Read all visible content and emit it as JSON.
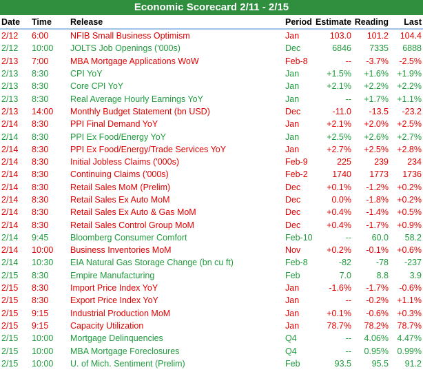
{
  "title": "Economic Scorecard 2/11 - 2/15",
  "table": {
    "header": [
      "Date",
      "Time",
      "Release",
      "Period",
      "Estimate",
      "Reading",
      "Last"
    ],
    "rows": [
      {
        "color": "#e00000",
        "cells": [
          "2/12",
          "6:00",
          "NFIB Small Business Optimism",
          "Jan",
          "103.0",
          "101.2",
          "104.4"
        ]
      },
      {
        "color": "#1e9a3c",
        "cells": [
          "2/12",
          "10:00",
          "JOLTS Job Openings ('000s)",
          "Dec",
          "6846",
          "7335",
          "6888"
        ]
      },
      {
        "color": "#e00000",
        "cells": [
          "2/13",
          "7:00",
          "MBA Mortgage Applications WoW",
          "Feb-8",
          "--",
          "-3.7%",
          "-2.5%"
        ]
      },
      {
        "color": "#1e9a3c",
        "cells": [
          "2/13",
          "8:30",
          "CPI YoY",
          "Jan",
          "+1.5%",
          "+1.6%",
          "+1.9%"
        ]
      },
      {
        "color": "#1e9a3c",
        "cells": [
          "2/13",
          "8:30",
          "Core CPI YoY",
          "Jan",
          "+2.1%",
          "+2.2%",
          "+2.2%"
        ]
      },
      {
        "color": "#1e9a3c",
        "cells": [
          "2/13",
          "8:30",
          "Real Average Hourly Earnings YoY",
          "Jan",
          "--",
          "+1.7%",
          "+1.1%"
        ]
      },
      {
        "color": "#e00000",
        "cells": [
          "2/13",
          "14:00",
          "Monthly Budget Statement (bn USD)",
          "Dec",
          "-11.0",
          "-13.5",
          "-23.2"
        ]
      },
      {
        "color": "#e00000",
        "cells": [
          "2/14",
          "8:30",
          "PPI Final Demand YoY",
          "Jan",
          "+2.1%",
          "+2.0%",
          "+2.5%"
        ]
      },
      {
        "color": "#1e9a3c",
        "cells": [
          "2/14",
          "8:30",
          "PPI Ex Food/Energy YoY",
          "Jan",
          "+2.5%",
          "+2.6%",
          "+2.7%"
        ]
      },
      {
        "color": "#e00000",
        "cells": [
          "2/14",
          "8:30",
          "PPI Ex Food/Energy/Trade Services YoY",
          "Jan",
          "+2.7%",
          "+2.5%",
          "+2.8%"
        ]
      },
      {
        "color": "#e00000",
        "cells": [
          "2/14",
          "8:30",
          "Initial Jobless Claims ('000s)",
          "Feb-9",
          "225",
          "239",
          "234"
        ]
      },
      {
        "color": "#e00000",
        "cells": [
          "2/14",
          "8:30",
          "Continuing Claims ('000s)",
          "Feb-2",
          "1740",
          "1773",
          "1736"
        ]
      },
      {
        "color": "#e00000",
        "cells": [
          "2/14",
          "8:30",
          "Retail Sales MoM (Prelim)",
          "Dec",
          "+0.1%",
          "-1.2%",
          "+0.2%"
        ]
      },
      {
        "color": "#e00000",
        "cells": [
          "2/14",
          "8:30",
          "Retail Sales Ex Auto MoM",
          "Dec",
          "0.0%",
          "-1.8%",
          "+0.2%"
        ]
      },
      {
        "color": "#e00000",
        "cells": [
          "2/14",
          "8:30",
          "Retail Sales Ex Auto & Gas MoM",
          "Dec",
          "+0.4%",
          "-1.4%",
          "+0.5%"
        ]
      },
      {
        "color": "#e00000",
        "cells": [
          "2/14",
          "8:30",
          "Retail Sales Control Group MoM",
          "Dec",
          "+0.4%",
          "-1.7%",
          "+0.9%"
        ]
      },
      {
        "color": "#1e9a3c",
        "cells": [
          "2/14",
          "9:45",
          "Bloomberg Consumer Comfort",
          "Feb-10",
          "--",
          "60.0",
          "58.2"
        ]
      },
      {
        "color": "#e00000",
        "cells": [
          "2/14",
          "10:00",
          "Business Inventories MoM",
          "Nov",
          "+0.2%",
          "-0.1%",
          "+0.6%"
        ]
      },
      {
        "color": "#1e9a3c",
        "cells": [
          "2/14",
          "10:30",
          "EIA Natural Gas Storage Change (bn cu ft)",
          "Feb-8",
          "-82",
          "-78",
          "-237"
        ]
      },
      {
        "color": "#1e9a3c",
        "cells": [
          "2/15",
          "8:30",
          "Empire Manufacturing",
          "Feb",
          "7.0",
          "8.8",
          "3.9"
        ]
      },
      {
        "color": "#e00000",
        "cells": [
          "2/15",
          "8:30",
          "Import Price Index YoY",
          "Jan",
          "-1.6%",
          "-1.7%",
          "-0.6%"
        ]
      },
      {
        "color": "#e00000",
        "cells": [
          "2/15",
          "8:30",
          "Export Price Index YoY",
          "Jan",
          "--",
          "-0.2%",
          "+1.1%"
        ]
      },
      {
        "color": "#e00000",
        "cells": [
          "2/15",
          "9:15",
          "Industrial Production MoM",
          "Jan",
          "+0.1%",
          "-0.6%",
          "+0.3%"
        ]
      },
      {
        "color": "#e00000",
        "cells": [
          "2/15",
          "9:15",
          "Capacity Utilization",
          "Jan",
          "78.7%",
          "78.2%",
          "78.7%"
        ]
      },
      {
        "color": "#1e9a3c",
        "cells": [
          "2/15",
          "10:00",
          "Mortgage Delinquencies",
          "Q4",
          "--",
          "4.06%",
          "4.47%"
        ]
      },
      {
        "color": "#1e9a3c",
        "cells": [
          "2/15",
          "10:00",
          "MBA Mortgage Foreclosures",
          "Q4",
          "--",
          "0.95%",
          "0.99%"
        ]
      },
      {
        "color": "#1e9a3c",
        "cells": [
          "2/15",
          "10:00",
          "U. of Mich. Sentiment (Prelim)",
          "Feb",
          "93.5",
          "95.5",
          "91.2"
        ]
      }
    ]
  }
}
